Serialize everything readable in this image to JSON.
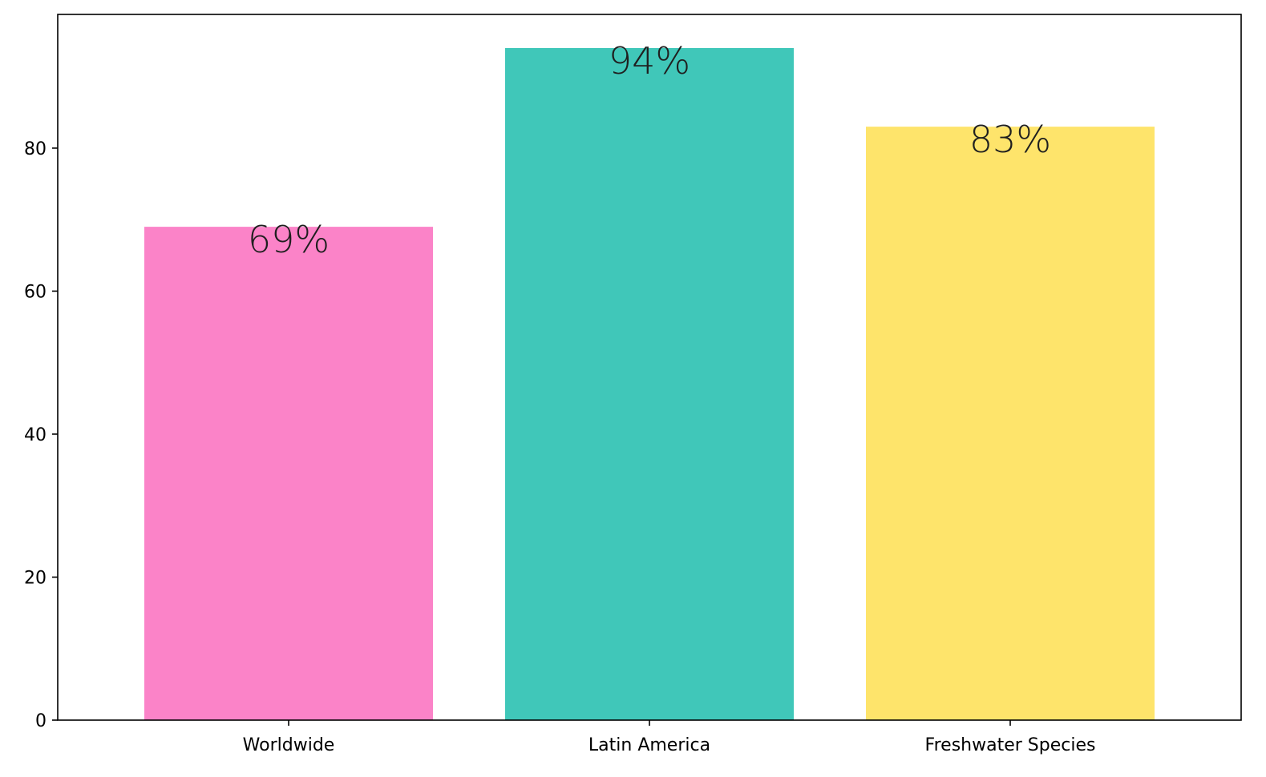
{
  "chart_data": {
    "type": "bar",
    "title": "",
    "xlabel": "",
    "ylabel": "",
    "categories": [
      "Worldwide",
      "Latin America",
      "Freshwater Species"
    ],
    "values": [
      69,
      94,
      83
    ],
    "data_labels": [
      "69%",
      "94%",
      "83%"
    ],
    "colors": [
      "#fb83c8",
      "#40c7b9",
      "#fee46b"
    ],
    "ylim": [
      0,
      98.7
    ],
    "yticks": [
      0,
      20,
      40,
      60,
      80
    ],
    "grid": false,
    "legend": "none"
  }
}
